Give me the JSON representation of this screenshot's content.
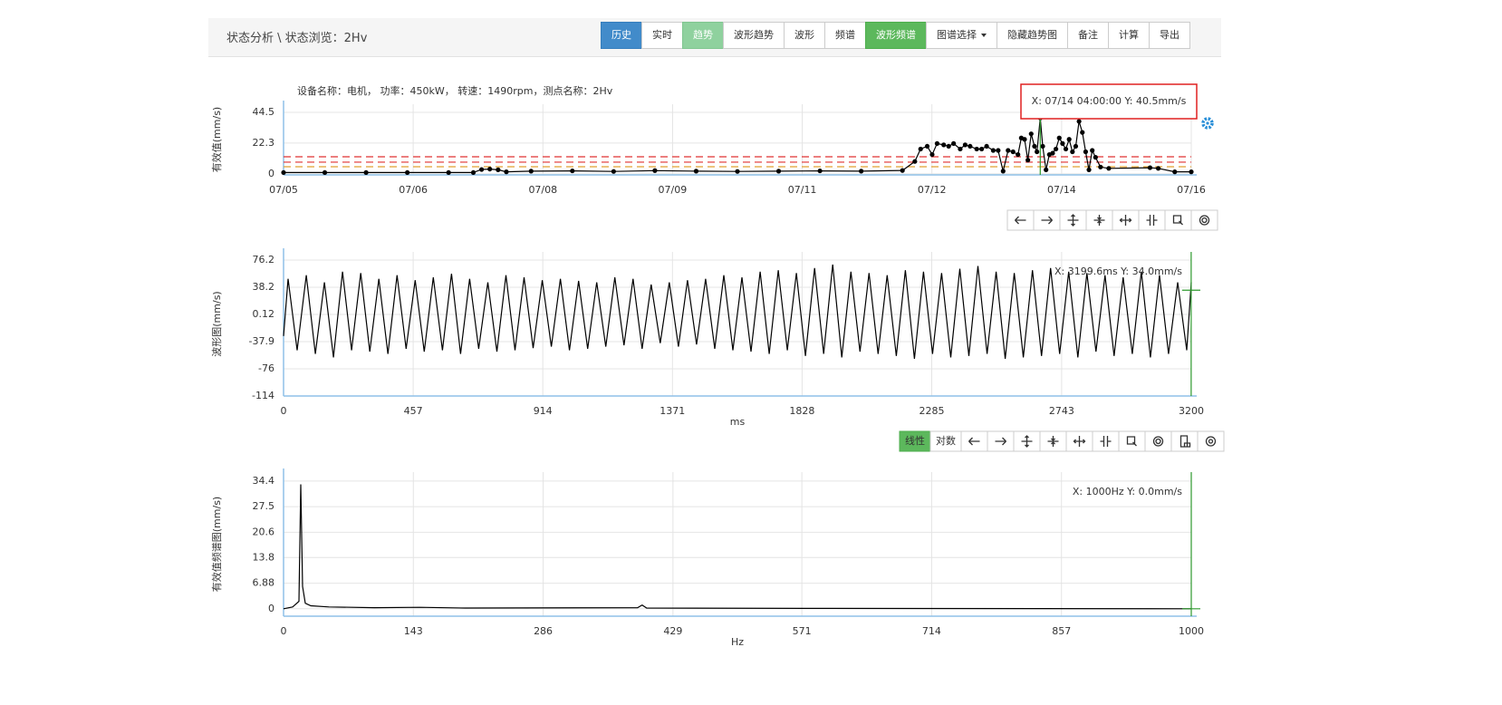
{
  "header": {
    "title": "状态分析 \\ 状态浏览：2Hv",
    "buttons": [
      "历史",
      "实时",
      "趋势",
      "波形趋势",
      "波形",
      "频谱",
      "波形频谱",
      "图谱选择",
      "隐藏趋势图",
      "备注",
      "计算",
      "导出"
    ]
  },
  "toolbar": {
    "labels": [
      "线性",
      "对数"
    ]
  },
  "chart_data": [
    {
      "type": "line",
      "subtitle": "设备名称：电机， 功率：450kW， 转速：1490rpm，测点名称：2Hv",
      "ylabel": "有效值(mm/s)",
      "annotation": "X: 07/14 04:00:00  Y: 40.5mm/s",
      "xlim": [
        0,
        11
      ],
      "xticks": [
        {
          "value": 0,
          "label": "07/05"
        },
        {
          "value": 1.571,
          "label": "07/06"
        },
        {
          "value": 3.143,
          "label": "07/08"
        },
        {
          "value": 4.714,
          "label": "07/09"
        },
        {
          "value": 6.286,
          "label": "07/11"
        },
        {
          "value": 7.857,
          "label": "07/12"
        },
        {
          "value": 9.429,
          "label": "07/14"
        },
        {
          "value": 11,
          "label": "07/16"
        }
      ],
      "ylim": [
        -0.7,
        50.4
      ],
      "yticks": [
        0,
        22.3,
        44.5
      ],
      "grid": true,
      "markers": true,
      "thresholds": [
        {
          "value": 12.4,
          "color": "#e03030"
        },
        {
          "value": 8.5,
          "color": "#e03030"
        },
        {
          "value": 5.2,
          "color": "#e0a030"
        }
      ],
      "cursor": {
        "x": 9.17
      },
      "series": [
        {
          "color": "#000000",
          "x": [
            0,
            0.5,
            1,
            1.5,
            2,
            2.3,
            2.4,
            2.5,
            2.6,
            2.7,
            3,
            3.5,
            4,
            4.5,
            5,
            5.5,
            6,
            6.5,
            7,
            7.5,
            7.65,
            7.72,
            7.8,
            7.86,
            7.92,
            8,
            8.06,
            8.12,
            8.2,
            8.26,
            8.32,
            8.4,
            8.46,
            8.52,
            8.6,
            8.66,
            8.72,
            8.78,
            8.84,
            8.9,
            8.94,
            8.98,
            9.02,
            9.06,
            9.1,
            9.13,
            9.17,
            9.2,
            9.24,
            9.28,
            9.32,
            9.36,
            9.4,
            9.44,
            9.48,
            9.52,
            9.56,
            9.6,
            9.64,
            9.68,
            9.72,
            9.76,
            9.8,
            9.84,
            9.9,
            10,
            10.5,
            10.6,
            10.8,
            11
          ],
          "values": [
            1,
            1,
            1,
            1,
            1,
            1,
            3.2,
            3.5,
            3,
            1.5,
            2,
            2.2,
            1.8,
            2.4,
            2,
            1.8,
            2,
            2.2,
            2,
            2.5,
            9,
            18,
            20,
            14,
            22,
            21,
            20,
            22,
            18,
            21,
            20,
            18,
            18,
            20,
            17,
            17,
            2,
            17,
            16,
            14,
            26,
            25,
            10,
            29,
            20,
            16,
            40.5,
            20,
            3,
            14,
            15,
            18,
            26,
            22,
            18,
            25,
            16,
            20,
            38,
            30,
            16,
            3,
            17,
            12,
            5,
            4,
            4.5,
            4,
            1.5,
            1.5
          ]
        }
      ]
    },
    {
      "type": "line",
      "ylabel": "波形图(mm/s)",
      "xlabel": "ms",
      "annotation": "X: 3199.6ms  Y: 34.0mm/s",
      "xlim": [
        0,
        3200
      ],
      "xticks": [
        0,
        457,
        914,
        1371,
        1828,
        2285,
        2743,
        3200
      ],
      "ylim": [
        -114,
        87.6
      ],
      "yticks": [
        76.2,
        38.2,
        0.12,
        -37.9,
        -76,
        -114
      ],
      "grid": true,
      "markers": false,
      "cursor": {
        "x": 3199.6,
        "y": 34.0
      },
      "series": [
        {
          "color": "#000000",
          "x": [
            0,
            16,
            48,
            80,
            112,
            144,
            176,
            208,
            240,
            272,
            304,
            336,
            368,
            400,
            432,
            464,
            496,
            528,
            560,
            592,
            624,
            656,
            688,
            720,
            752,
            784,
            816,
            848,
            880,
            912,
            944,
            976,
            1008,
            1040,
            1072,
            1104,
            1136,
            1168,
            1200,
            1232,
            1264,
            1296,
            1328,
            1360,
            1392,
            1424,
            1456,
            1488,
            1520,
            1552,
            1584,
            1616,
            1648,
            1680,
            1712,
            1744,
            1776,
            1808,
            1840,
            1872,
            1904,
            1936,
            1968,
            2000,
            2032,
            2064,
            2096,
            2128,
            2160,
            2192,
            2224,
            2256,
            2288,
            2320,
            2352,
            2384,
            2416,
            2448,
            2480,
            2512,
            2544,
            2576,
            2608,
            2640,
            2672,
            2704,
            2736,
            2768,
            2800,
            2832,
            2864,
            2896,
            2928,
            2960,
            2992,
            3024,
            3056,
            3088,
            3120,
            3152,
            3184,
            3200
          ],
          "values": [
            -30,
            50,
            -50,
            55,
            -55,
            45,
            -60,
            60,
            -50,
            58,
            -52,
            50,
            -55,
            55,
            -48,
            48,
            -52,
            52,
            -50,
            57,
            -55,
            50,
            -48,
            45,
            -52,
            55,
            -50,
            52,
            -47,
            48,
            -45,
            50,
            -50,
            47,
            -48,
            45,
            -45,
            52,
            -43,
            50,
            -48,
            42,
            -40,
            45,
            -45,
            48,
            -42,
            50,
            -48,
            55,
            -50,
            52,
            -52,
            60,
            -55,
            62,
            -50,
            58,
            -58,
            65,
            -55,
            70,
            -60,
            60,
            -52,
            58,
            -55,
            55,
            -58,
            62,
            -62,
            60,
            -55,
            58,
            -60,
            64,
            -58,
            68,
            -55,
            60,
            -62,
            58,
            -60,
            62,
            -58,
            65,
            -55,
            60,
            -60,
            58,
            -52,
            55,
            -58,
            52,
            -55,
            60,
            -60,
            55,
            -55,
            45,
            -50,
            45
          ]
        }
      ]
    },
    {
      "type": "line",
      "ylabel": "有效值频谱图(mm/s)",
      "xlabel": "Hz",
      "annotation": "X: 1000Hz  Y: 0.0mm/s",
      "xlim": [
        0,
        1000
      ],
      "xticks": [
        0,
        143,
        286,
        429,
        571,
        714,
        857,
        1000
      ],
      "ylim": [
        -2,
        36.8
      ],
      "yticks": [
        0,
        6.88,
        13.8,
        20.6,
        27.5,
        34.4
      ],
      "grid": true,
      "markers": false,
      "cursor": {
        "x": 1000,
        "y": 0
      },
      "series": [
        {
          "color": "#000000",
          "x": [
            0,
            10,
            17,
            19,
            21,
            24,
            30,
            50,
            100,
            150,
            200,
            390,
            395,
            400,
            600,
            1000
          ],
          "values": [
            0,
            0.5,
            2,
            33.5,
            6,
            1.5,
            0.8,
            0.5,
            0.3,
            0.4,
            0.2,
            0.3,
            1.0,
            0.2,
            0.1,
            0
          ]
        }
      ]
    }
  ]
}
